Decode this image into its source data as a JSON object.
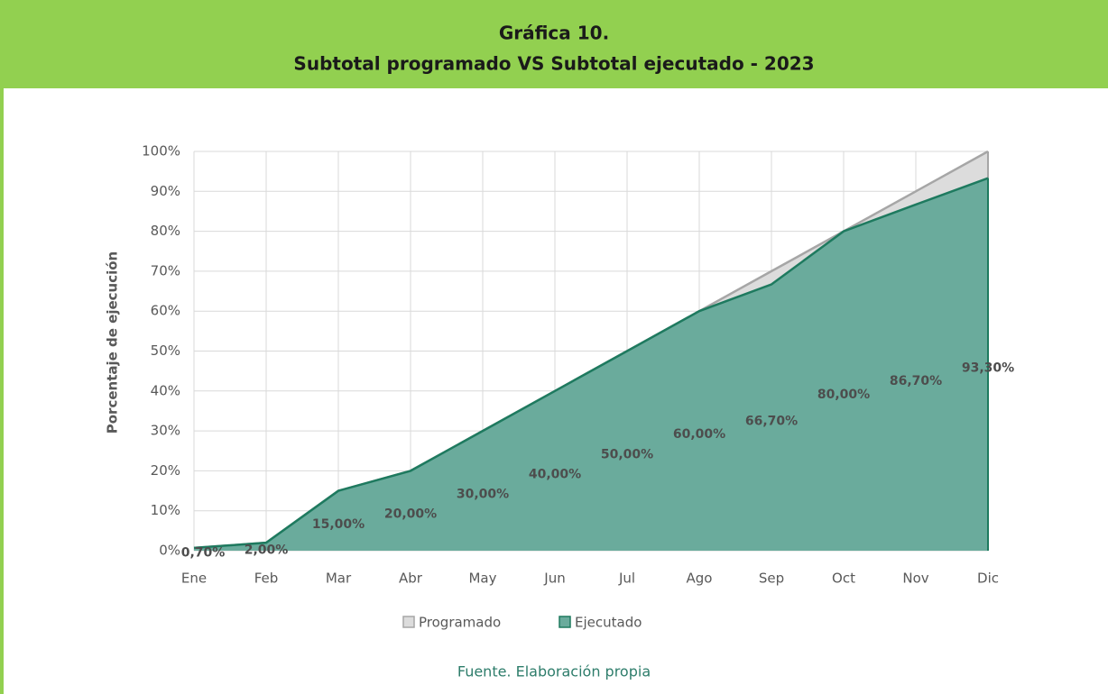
{
  "chart_data": {
    "type": "area",
    "title": "Gráfica 10.",
    "subtitle": "Subtotal programado VS Subtotal ejecutado - 2023",
    "y_label": "Porcentaje de ejecución",
    "source": "Fuente. Elaboración propia",
    "categories": [
      "Ene",
      "Feb",
      "Mar",
      "Abr",
      "May",
      "Jun",
      "Jul",
      "Ago",
      "Sep",
      "Oct",
      "Nov",
      "Dic"
    ],
    "series": [
      {
        "name": "Programado",
        "color": "#dcdcdc",
        "line_color": "#a6a6a6",
        "values": [
          0.7,
          2,
          15,
          20,
          30,
          40,
          50,
          60,
          70,
          80,
          90,
          100
        ]
      },
      {
        "name": "Ejecutado",
        "color": "#6aab9c",
        "line_color": "#1e7a5f",
        "values": [
          0.7,
          2,
          15,
          20,
          30,
          40,
          50,
          60,
          66.7,
          80,
          86.7,
          93.3
        ],
        "value_labels": [
          "0,70%",
          "2,00%",
          "15,00%",
          "20,00%",
          "30,00%",
          "40,00%",
          "50,00%",
          "60,00%",
          "66,70%",
          "80,00%",
          "86,70%",
          "93,30%"
        ]
      }
    ],
    "ylim": [
      0,
      100
    ],
    "yticks": [
      {
        "value": 0,
        "label": "0%"
      },
      {
        "value": 10,
        "label": "10%"
      },
      {
        "value": 20,
        "label": "20%"
      },
      {
        "value": 30,
        "label": "30%"
      },
      {
        "value": 40,
        "label": "40%"
      },
      {
        "value": 50,
        "label": "50%"
      },
      {
        "value": 60,
        "label": "60%"
      },
      {
        "value": 70,
        "label": "70%"
      },
      {
        "value": 80,
        "label": "80%"
      },
      {
        "value": 90,
        "label": "90%"
      },
      {
        "value": 100,
        "label": "100%"
      }
    ],
    "grid": true,
    "legend": "bottom"
  }
}
